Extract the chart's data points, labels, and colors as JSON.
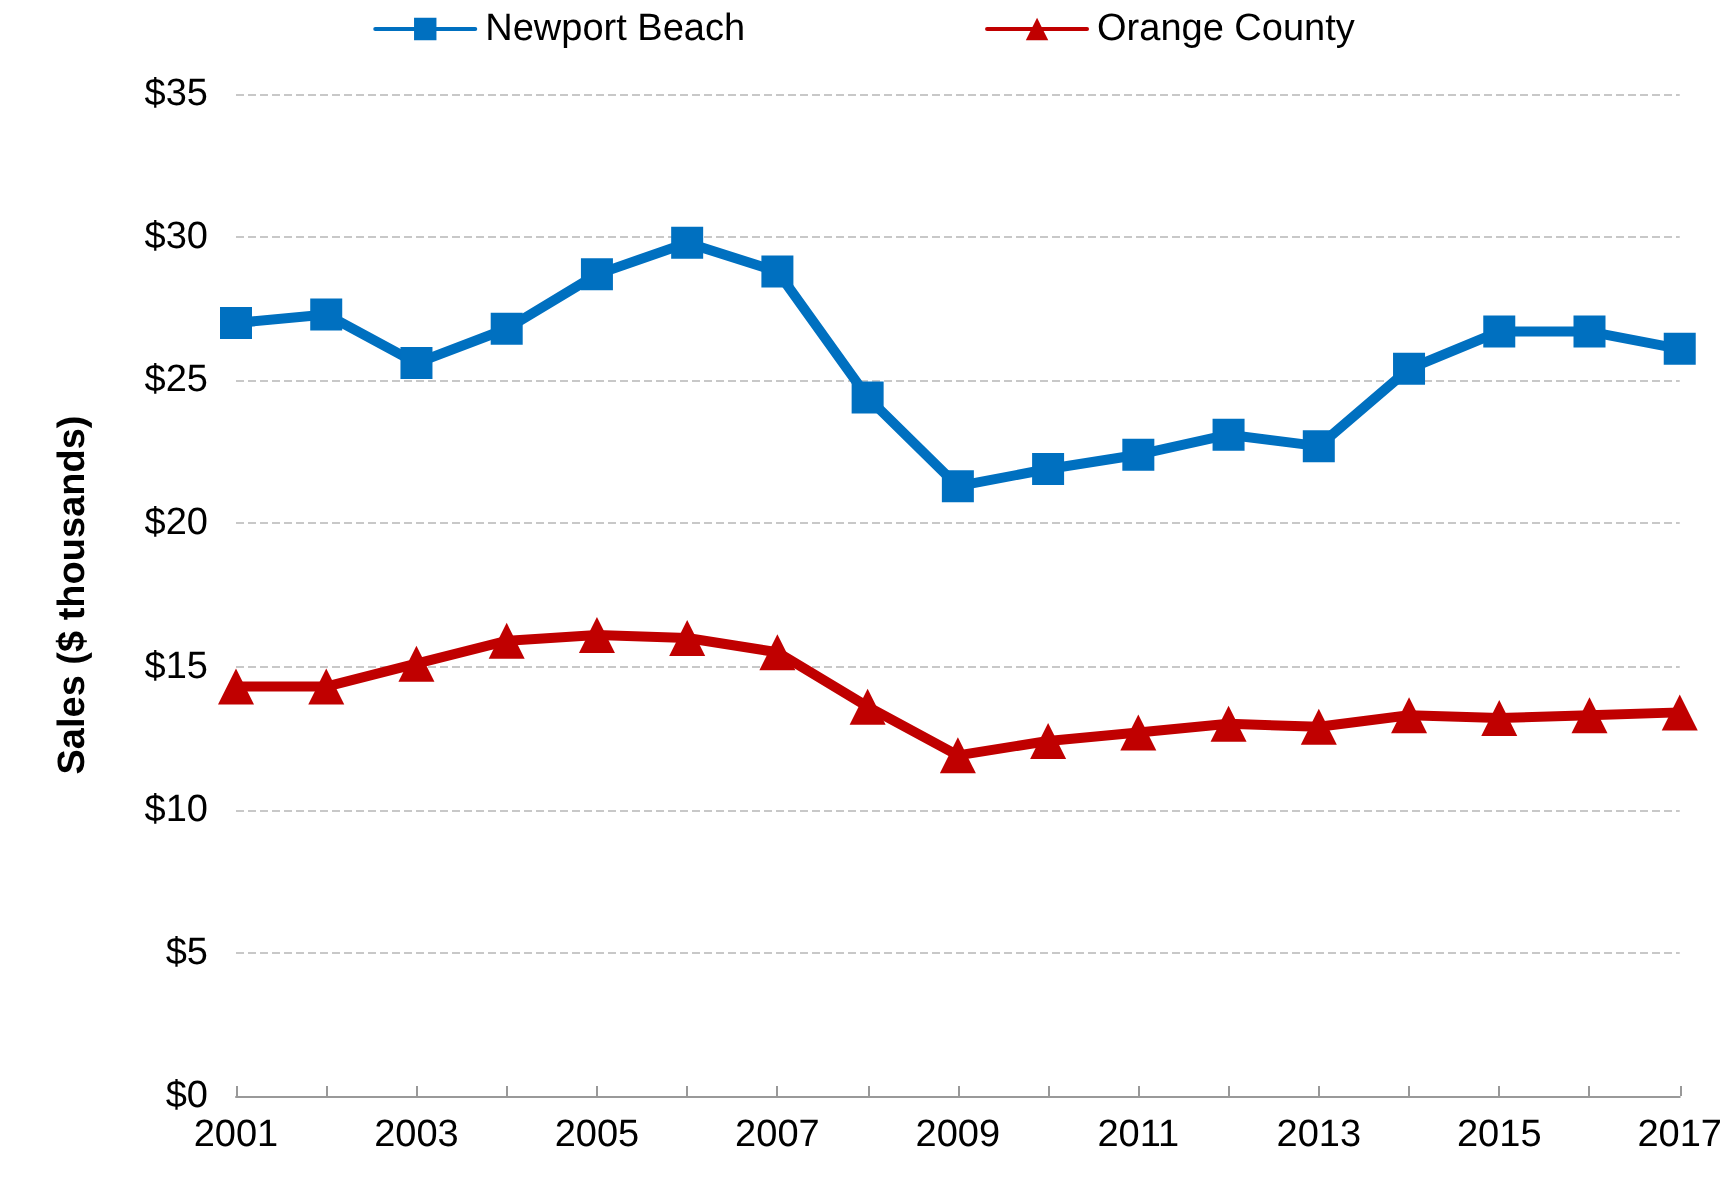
{
  "chart_data": {
    "type": "line",
    "ylabel": "Sales ($ thousands)",
    "categories": [
      "2001",
      null,
      "2003",
      null,
      "2005",
      null,
      "2007",
      null,
      "2009",
      null,
      "2011",
      null,
      "2013",
      null,
      "2015",
      null,
      "2017"
    ],
    "series": [
      {
        "name": "Newport Beach",
        "color": "#0070c0",
        "marker": "square",
        "values": [
          27.0,
          27.3,
          25.6,
          26.8,
          28.7,
          29.8,
          28.8,
          24.4,
          21.3,
          21.9,
          22.4,
          23.1,
          22.7,
          25.4,
          26.7,
          26.7,
          26.1
        ]
      },
      {
        "name": "Orange County",
        "color": "#c00000",
        "marker": "triangle",
        "values": [
          14.3,
          14.3,
          15.1,
          15.9,
          16.1,
          16.0,
          15.5,
          13.6,
          11.9,
          12.4,
          12.7,
          13.0,
          12.9,
          13.3,
          13.2,
          13.3,
          13.4
        ]
      }
    ],
    "ylim": [
      0,
      35
    ],
    "yticks": [
      {
        "value": 0,
        "label": "$0"
      },
      {
        "value": 5,
        "label": "$5"
      },
      {
        "value": 10,
        "label": "$10"
      },
      {
        "value": 15,
        "label": "$15"
      },
      {
        "value": 20,
        "label": "$20"
      },
      {
        "value": 25,
        "label": "$25"
      },
      {
        "value": 30,
        "label": "$30"
      },
      {
        "value": 35,
        "label": "$35"
      }
    ],
    "grid": "y",
    "legend": "top",
    "line_style": "solid"
  }
}
